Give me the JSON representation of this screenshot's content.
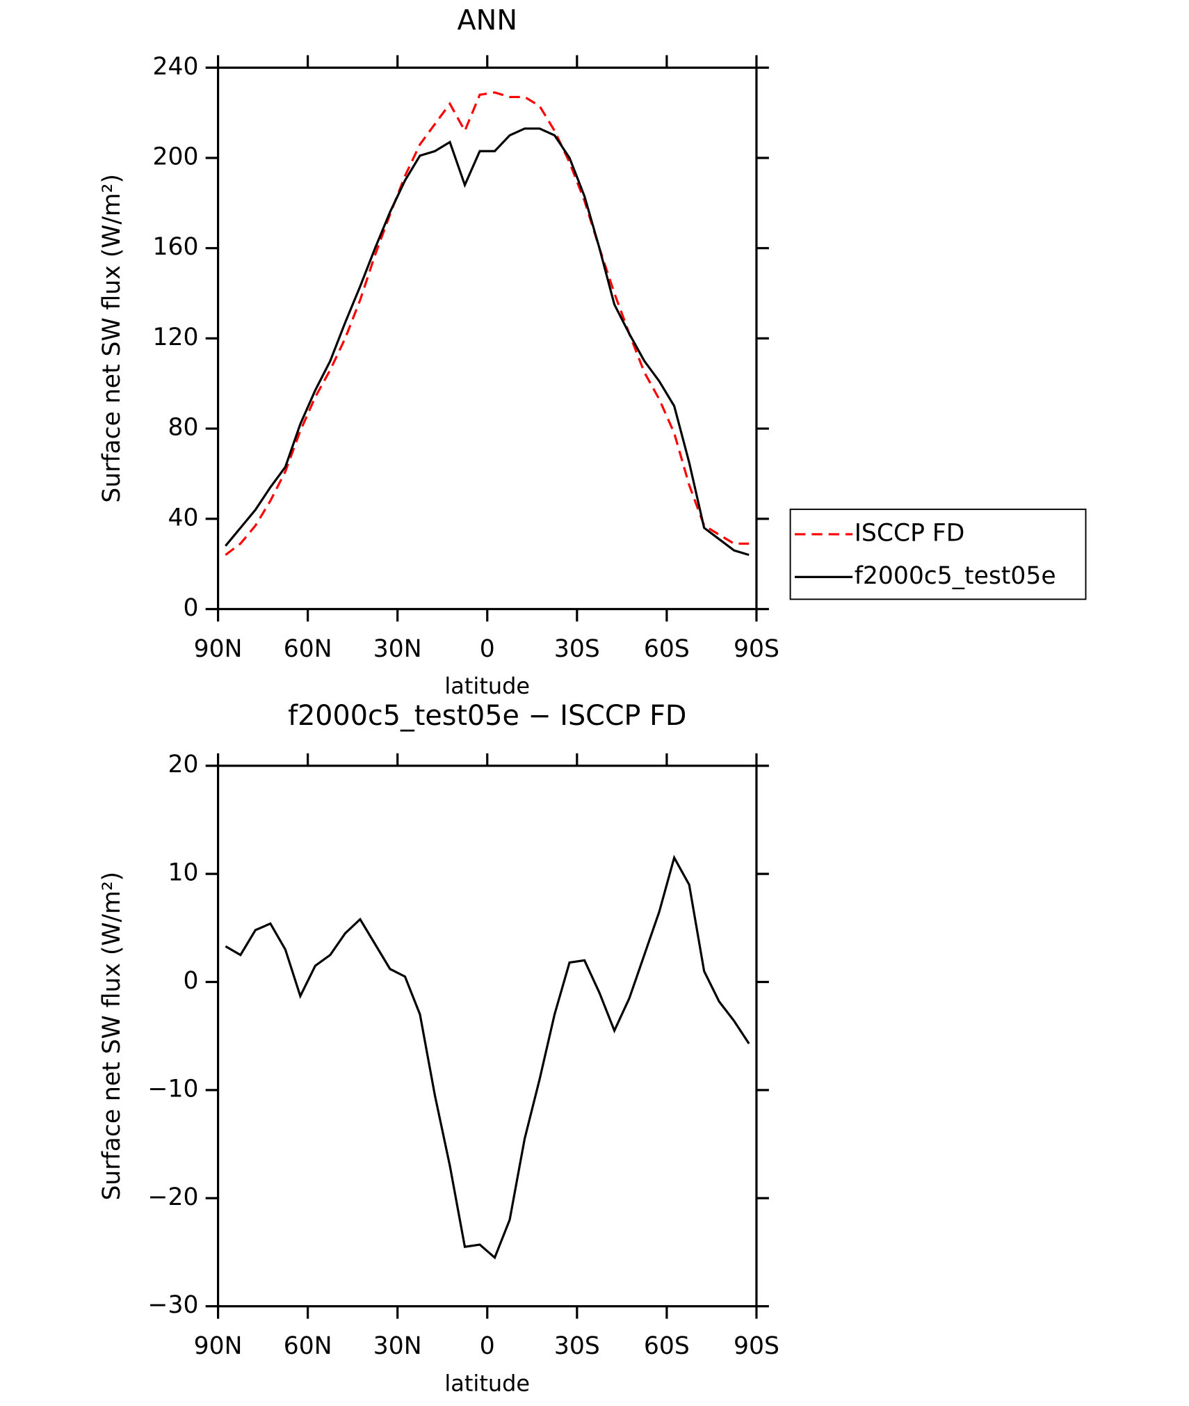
{
  "chart_data": [
    {
      "type": "line",
      "title": "ANN",
      "xlabel": "latitude",
      "ylabel": "Surface net SW flux (W/m²)",
      "x": [
        87.5,
        82.5,
        77.5,
        72.5,
        67.5,
        62.5,
        57.5,
        52.5,
        47.5,
        42.5,
        37.5,
        32.5,
        27.5,
        22.5,
        17.5,
        12.5,
        7.5,
        2.5,
        -2.5,
        -7.5,
        -12.5,
        -17.5,
        -22.5,
        -27.5,
        -32.5,
        -37.5,
        -42.5,
        -47.5,
        -52.5,
        -57.5,
        -62.5,
        -67.5,
        -72.5,
        -77.5,
        -82.5,
        -87.5
      ],
      "series": [
        {
          "name": "ISCCP FD",
          "color": "#ff0000",
          "linestyle": "dashed",
          "values": [
            24,
            29,
            37,
            48,
            61,
            79,
            94,
            106,
            120,
            137,
            157,
            175,
            192,
            206,
            215,
            224,
            212,
            228,
            229,
            227,
            227,
            223,
            212,
            198,
            181,
            160,
            140,
            122,
            105,
            93,
            78,
            55,
            37,
            33,
            29,
            29
          ]
        },
        {
          "name": "f2000c5_test05e",
          "color": "#000000",
          "linestyle": "solid",
          "values": [
            28,
            36,
            44,
            54,
            63,
            82,
            97,
            110,
            127,
            143,
            160,
            176,
            190,
            201,
            203,
            207,
            188,
            203,
            203,
            210,
            213,
            213,
            210,
            200,
            183,
            160,
            135,
            122,
            110,
            101,
            90,
            65,
            36,
            31,
            26,
            24
          ]
        }
      ],
      "xlim": [
        90,
        -90
      ],
      "xticks": [
        {
          "value": 90,
          "label": "90N"
        },
        {
          "value": 60,
          "label": "60N"
        },
        {
          "value": 30,
          "label": "30N"
        },
        0,
        {
          "value": -30,
          "label": "30S"
        },
        {
          "value": -60,
          "label": "60S"
        },
        {
          "value": -90,
          "label": "90S"
        }
      ],
      "ylim": [
        0,
        240
      ],
      "yticks": [
        0,
        40,
        80,
        120,
        160,
        200,
        240
      ],
      "legend": "right"
    },
    {
      "type": "line",
      "title": "f2000c5_test05e − ISCCP FD",
      "xlabel": "latitude",
      "ylabel": "Surface net SW flux (W/m²)",
      "x": [
        87.5,
        82.5,
        77.5,
        72.5,
        67.5,
        62.5,
        57.5,
        52.5,
        47.5,
        42.5,
        37.5,
        32.5,
        27.5,
        22.5,
        17.5,
        12.5,
        7.5,
        2.5,
        -2.5,
        -7.5,
        -12.5,
        -17.5,
        -22.5,
        -27.5,
        -32.5,
        -37.5,
        -42.5,
        -47.5,
        -52.5,
        -57.5,
        -62.5,
        -67.5,
        -72.5,
        -77.5,
        -82.5,
        -87.5
      ],
      "series": [
        {
          "color": "#000000",
          "linestyle": "solid",
          "values": [
            3.3,
            2.5,
            4.8,
            5.4,
            3,
            -1.3,
            1.5,
            2.5,
            4.5,
            5.8,
            3.5,
            1.2,
            0.5,
            -3,
            -10.5,
            -17,
            -24.5,
            -24.3,
            -25.5,
            -22,
            -14.5,
            -9,
            -3,
            1.8,
            2,
            -1,
            -4.5,
            -1.5,
            2.5,
            6.5,
            11.5,
            9,
            1,
            -1.8,
            -3.6,
            -5.7
          ]
        }
      ],
      "xlim": [
        90,
        -90
      ],
      "xticks": [
        {
          "value": 90,
          "label": "90N"
        },
        {
          "value": 60,
          "label": "60N"
        },
        {
          "value": 30,
          "label": "30N"
        },
        0,
        {
          "value": -30,
          "label": "30S"
        },
        {
          "value": -60,
          "label": "60S"
        },
        {
          "value": -90,
          "label": "90S"
        }
      ],
      "ylim": [
        -30,
        20
      ],
      "yticks": [
        {
          "value": -30,
          "label": "−30"
        },
        {
          "value": -20,
          "label": "−20"
        },
        {
          "value": -10,
          "label": "−10"
        },
        0,
        10,
        20
      ]
    }
  ]
}
